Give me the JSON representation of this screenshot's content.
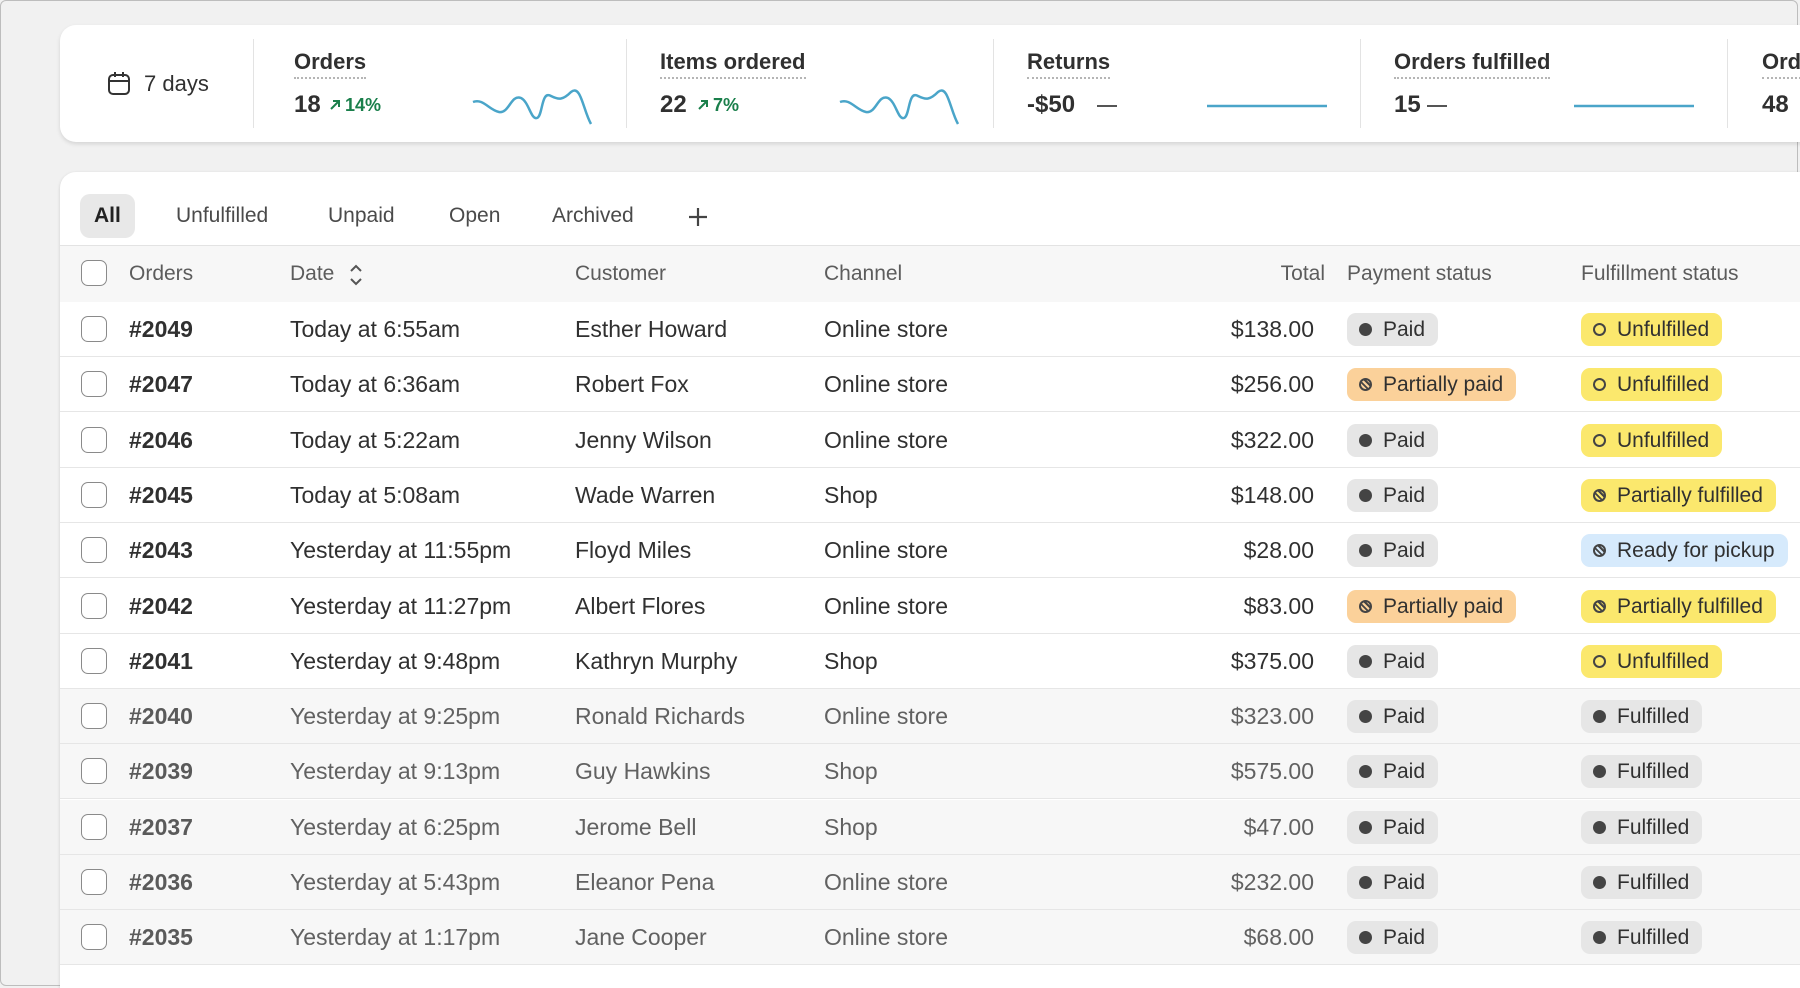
{
  "metrics": {
    "range": "7 days",
    "items": [
      {
        "label": "Orders",
        "value": "18",
        "change": "14%"
      },
      {
        "label": "Items ordered",
        "value": "22",
        "change": "7%"
      },
      {
        "label": "Returns",
        "value": "-$50"
      },
      {
        "label": "Orders fulfilled",
        "value": "15"
      },
      {
        "label": "Ord",
        "value": "48"
      }
    ]
  },
  "tabs": [
    "All",
    "Unfulfilled",
    "Unpaid",
    "Open",
    "Archived"
  ],
  "table": {
    "headers": [
      "Orders",
      "Date",
      "Customer",
      "Channel",
      "Total",
      "Payment status",
      "Fulfillment status"
    ],
    "rows": [
      {
        "order": "#2049",
        "date": "Today at 6:55am",
        "customer": "Esther Howard",
        "channel": "Online store",
        "total": "$138.00",
        "background": "#ffffff",
        "payment": {
          "label": "Paid",
          "color": "#e6e6e6",
          "icon": "dot"
        },
        "fulfillment": {
          "label": "Unfulfilled",
          "color": "#fbe86d",
          "icon": "ring"
        }
      },
      {
        "order": "#2047",
        "date": "Today at 6:36am",
        "customer": "Robert Fox",
        "channel": "Online store",
        "total": "$256.00",
        "background": "#ffffff",
        "payment": {
          "label": "Partially paid",
          "color": "#fbd19a",
          "icon": "partial"
        },
        "fulfillment": {
          "label": "Unfulfilled",
          "color": "#fbe86d",
          "icon": "ring"
        }
      },
      {
        "order": "#2046",
        "date": "Today at 5:22am",
        "customer": "Jenny Wilson",
        "channel": "Online store",
        "total": "$322.00",
        "background": "#ffffff",
        "payment": {
          "label": "Paid",
          "color": "#e6e6e6",
          "icon": "dot"
        },
        "fulfillment": {
          "label": "Unfulfilled",
          "color": "#fbe86d",
          "icon": "ring"
        }
      },
      {
        "order": "#2045",
        "date": "Today at 5:08am",
        "customer": "Wade Warren",
        "channel": "Shop",
        "total": "$148.00",
        "background": "#ffffff",
        "payment": {
          "label": "Paid",
          "color": "#e6e6e6",
          "icon": "dot"
        },
        "fulfillment": {
          "label": "Partially fulfilled",
          "color": "#fbe86d",
          "icon": "partial"
        }
      },
      {
        "order": "#2043",
        "date": "Yesterday at 11:55pm",
        "customer": "Floyd Miles",
        "channel": "Online store",
        "total": "$28.00",
        "background": "#ffffff",
        "payment": {
          "label": "Paid",
          "color": "#e6e6e6",
          "icon": "dot"
        },
        "fulfillment": {
          "label": "Ready for pickup",
          "color": "#d6eafc",
          "icon": "partial"
        }
      },
      {
        "order": "#2042",
        "date": "Yesterday at 11:27pm",
        "customer": "Albert Flores",
        "channel": "Online store",
        "total": "$83.00",
        "background": "#ffffff",
        "payment": {
          "label": "Partially paid",
          "color": "#fbd19a",
          "icon": "partial"
        },
        "fulfillment": {
          "label": "Partially fulfilled",
          "color": "#fbe86d",
          "icon": "partial"
        }
      },
      {
        "order": "#2041",
        "date": "Yesterday at 9:48pm",
        "customer": "Kathryn Murphy",
        "channel": "Shop",
        "total": "$375.00",
        "background": "#ffffff",
        "payment": {
          "label": "Paid",
          "color": "#e6e6e6",
          "icon": "dot"
        },
        "fulfillment": {
          "label": "Unfulfilled",
          "color": "#fbe86d",
          "icon": "ring"
        }
      },
      {
        "order": "#2040",
        "date": "Yesterday at 9:25pm",
        "customer": "Ronald Richards",
        "channel": "Online store",
        "total": "$323.00",
        "background": "#f7f7f7",
        "payment": {
          "label": "Paid",
          "color": "#e6e6e6",
          "icon": "dot"
        },
        "fulfillment": {
          "label": "Fulfilled",
          "color": "#e6e6e6",
          "icon": "dot"
        }
      },
      {
        "order": "#2039",
        "date": "Yesterday at 9:13pm",
        "customer": "Guy Hawkins",
        "channel": "Shop",
        "total": "$575.00",
        "background": "#f7f7f7",
        "payment": {
          "label": "Paid",
          "color": "#e6e6e6",
          "icon": "dot"
        },
        "fulfillment": {
          "label": "Fulfilled",
          "color": "#e6e6e6",
          "icon": "dot"
        }
      },
      {
        "order": "#2037",
        "date": "Yesterday at 6:25pm",
        "customer": "Jerome Bell",
        "channel": "Shop",
        "total": "$47.00",
        "background": "#f7f7f7",
        "payment": {
          "label": "Paid",
          "color": "#e6e6e6",
          "icon": "dot"
        },
        "fulfillment": {
          "label": "Fulfilled",
          "color": "#e6e6e6",
          "icon": "dot"
        }
      },
      {
        "order": "#2036",
        "date": "Yesterday at 5:43pm",
        "customer": "Eleanor Pena",
        "channel": "Online store",
        "total": "$232.00",
        "background": "#f7f7f7",
        "payment": {
          "label": "Paid",
          "color": "#e6e6e6",
          "icon": "dot"
        },
        "fulfillment": {
          "label": "Fulfilled",
          "color": "#e6e6e6",
          "icon": "dot"
        }
      },
      {
        "order": "#2035",
        "date": "Yesterday at 1:17pm",
        "customer": "Jane Cooper",
        "channel": "Online store",
        "total": "$68.00",
        "background": "#f7f7f7",
        "payment": {
          "label": "Paid",
          "color": "#e6e6e6",
          "icon": "dot"
        },
        "fulfillment": {
          "label": "Fulfilled",
          "color": "#e6e6e6",
          "icon": "dot"
        }
      }
    ]
  }
}
